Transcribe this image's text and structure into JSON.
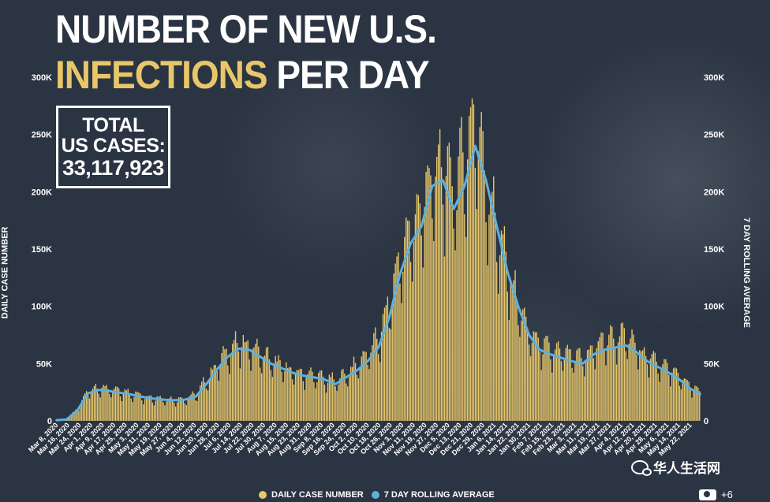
{
  "headline": {
    "line1": "NUMBER OF NEW U.S.",
    "line2_accent": "INFECTIONS",
    "line2_rest": " PER DAY"
  },
  "total_box": {
    "label_line1": "TOTAL",
    "label_line2": "US CASES:",
    "value": "33,117,923"
  },
  "watermark": {
    "text": "华人生活网",
    "icon": "wechat-icon"
  },
  "gallery": {
    "icon": "camera-icon",
    "count": "+6"
  },
  "colors": {
    "bars": "#e8c76a",
    "line": "#5fb0dc",
    "background": "#2b3442",
    "accent": "#e8c76a"
  },
  "chart_data": {
    "type": "bar",
    "ylabel": "DAILY CASE NUMBER",
    "ylabel_right": "7 DAY ROLLING AVERAGE",
    "ylim": [
      0,
      300000
    ],
    "yticks": [
      0,
      50000,
      100000,
      150000,
      200000,
      250000,
      300000
    ],
    "ytick_labels": [
      "0",
      "50K",
      "100K",
      "150K",
      "200K",
      "250K",
      "300K"
    ],
    "legend_position": "bottom",
    "grid": false,
    "x_tick_labels": [
      "Mar 8, 2020",
      "Mar 16, 2020",
      "Mar 24, 2020",
      "Apr 1, 2020",
      "Apr 9, 2020",
      "Apr 17, 2020",
      "Apr 25, 2020",
      "May 3, 2020",
      "May 11, 2020",
      "May 19, 2020",
      "May 27, 2020",
      "Jun 4, 2020",
      "Jun 12, 2020",
      "Jun 20, 2020",
      "Jun 28, 2020",
      "Jul 6, 2020",
      "Jul 14, 2020",
      "Jul 22, 2020",
      "Jul 30, 2020",
      "Aug 7, 2020",
      "Aug 15, 2020",
      "Aug 23, 2020",
      "Aug 31, 2020",
      "Sep 8, 2020",
      "Sep 16, 2020",
      "Sep 24, 2020",
      "Oct 2, 2020",
      "Oct 10, 2020",
      "Oct 18, 2020",
      "Oct 26, 2020",
      "Nov 3, 2020",
      "Nov 11, 2020",
      "Nov 19, 2020",
      "Nov 27, 2020",
      "Dec 5, 2020",
      "Dec 13, 2020",
      "Dec 21, 2020",
      "Dec 29, 2020",
      "Jan 6, 2021",
      "Jan 14, 2021",
      "Jan 22, 2021",
      "Jan 30, 2021",
      "Feb 7, 2021",
      "Feb 15, 2021",
      "Feb 23, 2021",
      "Mar 3, 2021",
      "Mar 11, 2021",
      "Mar 19, 2021",
      "Mar 27, 2021",
      "Apr 4, 2021",
      "Apr 12, 2021",
      "Apr 20, 2021",
      "Apr 28, 2021",
      "May 6, 2021",
      "May 14, 2021",
      "May 22, 2021"
    ],
    "series": [
      {
        "name": "DAILY CASE NUMBER",
        "kind": "bar",
        "date_start": "Mar 8, 2020",
        "date_end": "May 22, 2021",
        "weekly_values": [
          500,
          1500,
          10000,
          26000,
          29000,
          27000,
          25000,
          24000,
          21000,
          20000,
          19000,
          18000,
          19000,
          22000,
          35000,
          48000,
          60000,
          66000,
          64000,
          58000,
          52000,
          47000,
          42000,
          40000,
          39000,
          36000,
          34000,
          40000,
          48000,
          58000,
          70000,
          100000,
          140000,
          160000,
          185000,
          210000,
          215000,
          200000,
          225000,
          265000,
          205000,
          165000,
          130000,
          100000,
          75000,
          66000,
          60000,
          58000,
          55000,
          53000,
          62000,
          70000,
          72000,
          72000,
          64000,
          55000,
          50000,
          45000,
          38000,
          30000,
          23000
        ]
      },
      {
        "name": "7 DAY ROLLING AVERAGE",
        "kind": "line",
        "weekly_values": [
          500,
          1200,
          9000,
          24000,
          27000,
          26000,
          24500,
          23000,
          21000,
          19500,
          18500,
          18000,
          18500,
          21000,
          32000,
          45000,
          56000,
          63000,
          62000,
          56000,
          50000,
          46000,
          42000,
          39500,
          38000,
          36000,
          32000,
          38000,
          44000,
          52000,
          64000,
          90000,
          128000,
          155000,
          170000,
          205000,
          210000,
          185000,
          205000,
          240000,
          210000,
          170000,
          130000,
          100000,
          75000,
          62000,
          58000,
          55000,
          52000,
          50000,
          58000,
          62000,
          64000,
          66000,
          60000,
          52000,
          47000,
          42000,
          36000,
          28000,
          23000
        ]
      }
    ]
  }
}
